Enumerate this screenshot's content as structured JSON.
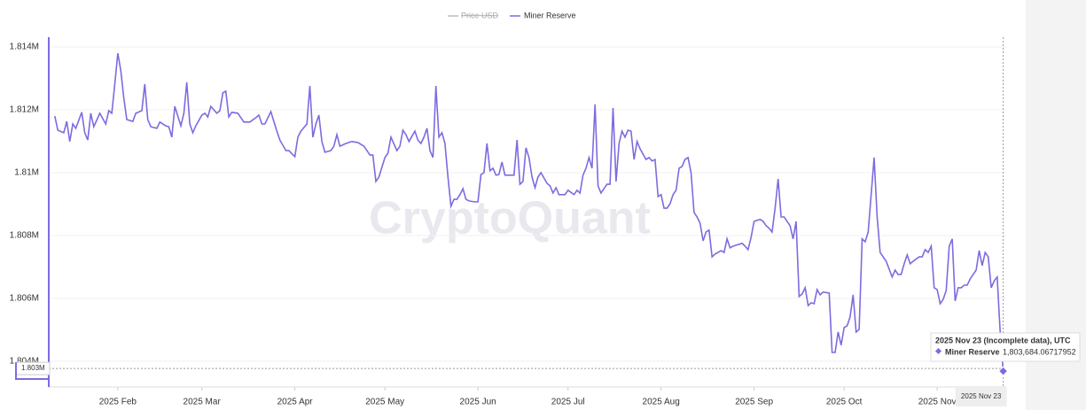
{
  "chart_data": {
    "type": "line",
    "watermark": "CryptoQuant",
    "hidden_series": [
      {
        "name": "Price USD",
        "color": "#bbbbbb"
      }
    ],
    "x": [
      "2025-01-11",
      "2025-01-12",
      "2025-01-14",
      "2025-01-15",
      "2025-01-16",
      "2025-01-17",
      "2025-01-18",
      "2025-01-20",
      "2025-01-21",
      "2025-01-22",
      "2025-01-23",
      "2025-01-24",
      "2025-01-26",
      "2025-01-28",
      "2025-01-29",
      "2025-01-30",
      "2025-01-31",
      "2025-02-01",
      "2025-02-02",
      "2025-02-03",
      "2025-02-04",
      "2025-02-06",
      "2025-02-07",
      "2025-02-09",
      "2025-02-10",
      "2025-02-11",
      "2025-02-12",
      "2025-02-14",
      "2025-02-15",
      "2025-02-17",
      "2025-02-18",
      "2025-02-19",
      "2025-02-20",
      "2025-02-22",
      "2025-02-23",
      "2025-02-24",
      "2025-02-25",
      "2025-02-26",
      "2025-02-27",
      "2025-03-01",
      "2025-03-02",
      "2025-03-03",
      "2025-03-04",
      "2025-03-06",
      "2025-03-07",
      "2025-03-08",
      "2025-03-09",
      "2025-03-10",
      "2025-03-11",
      "2025-03-13",
      "2025-03-15",
      "2025-03-17",
      "2025-03-19",
      "2025-03-20",
      "2025-03-21",
      "2025-03-22",
      "2025-03-24",
      "2025-03-26",
      "2025-03-27",
      "2025-03-29",
      "2025-03-30",
      "2025-04-01",
      "2025-04-02",
      "2025-04-03",
      "2025-04-05",
      "2025-04-06",
      "2025-04-07",
      "2025-04-08",
      "2025-04-09",
      "2025-04-10",
      "2025-04-11",
      "2025-04-13",
      "2025-04-14",
      "2025-04-15",
      "2025-04-16",
      "2025-04-18",
      "2025-04-20",
      "2025-04-22",
      "2025-04-24",
      "2025-04-26",
      "2025-04-27",
      "2025-04-28",
      "2025-04-29",
      "2025-05-01",
      "2025-05-02",
      "2025-05-03",
      "2025-05-05",
      "2025-05-06",
      "2025-05-07",
      "2025-05-08",
      "2025-05-09",
      "2025-05-11",
      "2025-05-12",
      "2025-05-13",
      "2025-05-14",
      "2025-05-15",
      "2025-05-16",
      "2025-05-17",
      "2025-05-18",
      "2025-05-19",
      "2025-05-20",
      "2025-05-21",
      "2025-05-22",
      "2025-05-23",
      "2025-05-24",
      "2025-05-25",
      "2025-05-26",
      "2025-05-27",
      "2025-05-28",
      "2025-05-29",
      "2025-05-31",
      "2025-06-01",
      "2025-06-02",
      "2025-06-03",
      "2025-06-04",
      "2025-06-05",
      "2025-06-06",
      "2025-06-07",
      "2025-06-08",
      "2025-06-09",
      "2025-06-10",
      "2025-06-11",
      "2025-06-13",
      "2025-06-14",
      "2025-06-15",
      "2025-06-16",
      "2025-06-17",
      "2025-06-18",
      "2025-06-19",
      "2025-06-20",
      "2025-06-21",
      "2025-06-22",
      "2025-06-24",
      "2025-06-25",
      "2025-06-26",
      "2025-06-27",
      "2025-06-28",
      "2025-06-30",
      "2025-07-01",
      "2025-07-03",
      "2025-07-04",
      "2025-07-05",
      "2025-07-06",
      "2025-07-07",
      "2025-07-08",
      "2025-07-09",
      "2025-07-10",
      "2025-07-11",
      "2025-07-12",
      "2025-07-14",
      "2025-07-15",
      "2025-07-16",
      "2025-07-17",
      "2025-07-18",
      "2025-07-19",
      "2025-07-20",
      "2025-07-21",
      "2025-07-22",
      "2025-07-23",
      "2025-07-24",
      "2025-07-25",
      "2025-07-27",
      "2025-07-28",
      "2025-07-29",
      "2025-07-30",
      "2025-07-31",
      "2025-08-01",
      "2025-08-02",
      "2025-08-03",
      "2025-08-04",
      "2025-08-05",
      "2025-08-06",
      "2025-08-07",
      "2025-08-08",
      "2025-08-09",
      "2025-08-10",
      "2025-08-11",
      "2025-08-12",
      "2025-08-13",
      "2025-08-14",
      "2025-08-15",
      "2025-08-16",
      "2025-08-17",
      "2025-08-18",
      "2025-08-19",
      "2025-08-21",
      "2025-08-22",
      "2025-08-23",
      "2025-08-24",
      "2025-08-25",
      "2025-08-26",
      "2025-08-28",
      "2025-08-29",
      "2025-08-30",
      "2025-08-31",
      "2025-09-01",
      "2025-09-03",
      "2025-09-04",
      "2025-09-05",
      "2025-09-06",
      "2025-09-07",
      "2025-09-08",
      "2025-09-09",
      "2025-09-10",
      "2025-09-11",
      "2025-09-13",
      "2025-09-14",
      "2025-09-15",
      "2025-09-16",
      "2025-09-17",
      "2025-09-18",
      "2025-09-19",
      "2025-09-20",
      "2025-09-21",
      "2025-09-22",
      "2025-09-23",
      "2025-09-24",
      "2025-09-26",
      "2025-09-27",
      "2025-09-28",
      "2025-09-29",
      "2025-09-30",
      "2025-10-01",
      "2025-10-02",
      "2025-10-03",
      "2025-10-04",
      "2025-10-05",
      "2025-10-06",
      "2025-10-07",
      "2025-10-08",
      "2025-10-09",
      "2025-10-11",
      "2025-10-12",
      "2025-10-13",
      "2025-10-14",
      "2025-10-15",
      "2025-10-17",
      "2025-10-18",
      "2025-10-19",
      "2025-10-20",
      "2025-10-21",
      "2025-10-22",
      "2025-10-23",
      "2025-10-24",
      "2025-10-26",
      "2025-10-27",
      "2025-10-28",
      "2025-10-29",
      "2025-10-30",
      "2025-10-31",
      "2025-11-01",
      "2025-11-02",
      "2025-11-03",
      "2025-11-04",
      "2025-11-05",
      "2025-11-06",
      "2025-11-07",
      "2025-11-08",
      "2025-11-09",
      "2025-11-10",
      "2025-11-11",
      "2025-11-12",
      "2025-11-14",
      "2025-11-15",
      "2025-11-16",
      "2025-11-17",
      "2025-11-18",
      "2025-11-19",
      "2025-11-20",
      "2025-11-21",
      "2025-11-22",
      "2025-11-23"
    ],
    "series": [
      {
        "name": "Miner Reserve",
        "color": "#7d6be0",
        "values": [
          1811800,
          1811350,
          1811270,
          1811630,
          1810990,
          1811550,
          1811410,
          1811920,
          1811270,
          1811040,
          1811890,
          1811460,
          1811890,
          1811550,
          1811970,
          1811890,
          1812820,
          1813800,
          1813240,
          1812390,
          1811690,
          1811630,
          1811890,
          1811970,
          1812820,
          1811690,
          1811460,
          1811410,
          1811610,
          1811490,
          1811460,
          1811130,
          1812110,
          1811490,
          1811890,
          1812870,
          1811550,
          1811270,
          1811490,
          1811830,
          1811890,
          1811770,
          1812110,
          1811890,
          1811970,
          1812540,
          1812590,
          1811770,
          1811920,
          1811890,
          1811610,
          1811610,
          1811750,
          1811830,
          1811550,
          1811550,
          1811940,
          1811320,
          1811040,
          1810700,
          1810700,
          1810510,
          1811130,
          1811320,
          1811550,
          1812760,
          1811130,
          1811550,
          1811830,
          1810990,
          1810650,
          1810700,
          1810840,
          1811210,
          1810840,
          1810930,
          1810990,
          1810960,
          1810840,
          1810560,
          1810560,
          1809720,
          1809860,
          1810480,
          1810620,
          1811130,
          1810700,
          1810840,
          1811350,
          1811210,
          1810990,
          1811320,
          1811040,
          1810930,
          1811130,
          1811410,
          1810700,
          1810480,
          1812760,
          1811130,
          1811270,
          1810930,
          1809860,
          1808930,
          1809150,
          1809150,
          1809300,
          1809490,
          1809150,
          1809100,
          1809070,
          1809070,
          1809940,
          1810000,
          1810930,
          1810060,
          1810140,
          1809920,
          1809940,
          1810340,
          1809920,
          1809920,
          1809920,
          1811040,
          1809630,
          1809720,
          1810790,
          1810480,
          1809860,
          1809520,
          1809860,
          1810000,
          1809660,
          1809580,
          1809350,
          1809520,
          1809300,
          1809300,
          1809440,
          1809300,
          1809440,
          1809350,
          1809920,
          1810140,
          1810480,
          1810140,
          1812170,
          1809580,
          1809350,
          1809630,
          1809630,
          1812060,
          1809720,
          1810930,
          1811320,
          1811130,
          1811350,
          1811320,
          1810420,
          1810990,
          1810760,
          1810420,
          1810480,
          1810370,
          1810420,
          1809240,
          1809300,
          1808870,
          1808870,
          1809010,
          1809300,
          1809440,
          1810140,
          1810200,
          1810420,
          1810480,
          1810000,
          1808730,
          1808590,
          1808390,
          1807830,
          1808110,
          1808170,
          1807320,
          1807410,
          1807520,
          1807460,
          1807890,
          1807610,
          1807660,
          1807690,
          1807750,
          1807660,
          1807550,
          1807940,
          1808450,
          1808510,
          1808450,
          1808310,
          1808230,
          1808110,
          1808870,
          1809800,
          1808590,
          1808590,
          1808310,
          1807890,
          1808450,
          1806060,
          1806140,
          1806340,
          1805770,
          1805860,
          1805830,
          1806280,
          1806110,
          1806200,
          1806170,
          1804280,
          1804280,
          1804930,
          1804510,
          1805070,
          1805130,
          1805410,
          1806110,
          1804930,
          1805010,
          1807890,
          1807800,
          1808110,
          1810480,
          1808590,
          1807460,
          1807320,
          1807180,
          1806680,
          1806900,
          1806760,
          1806760,
          1807100,
          1807380,
          1807100,
          1807180,
          1807320,
          1807320,
          1807550,
          1807460,
          1807660,
          1806340,
          1806280,
          1805830,
          1805970,
          1806250,
          1807660,
          1807890,
          1805920,
          1806340,
          1806340,
          1806420,
          1806420,
          1806620,
          1806900,
          1807520,
          1807040,
          1807460,
          1807320,
          1806340,
          1806560,
          1806680,
          1804930,
          1803684.06717952
        ]
      }
    ],
    "xlim": [
      "2025-01-09",
      "2025-11-24"
    ],
    "xticks": [
      {
        "value": "2025-02-01",
        "label": "2025 Feb"
      },
      {
        "value": "2025-03-01",
        "label": "2025 Mar"
      },
      {
        "value": "2025-04-01",
        "label": "2025 Apr"
      },
      {
        "value": "2025-05-01",
        "label": "2025 May"
      },
      {
        "value": "2025-06-01",
        "label": "2025 Jun"
      },
      {
        "value": "2025-07-01",
        "label": "2025 Jul"
      },
      {
        "value": "2025-08-01",
        "label": "2025 Aug"
      },
      {
        "value": "2025-09-01",
        "label": "2025 Sep"
      },
      {
        "value": "2025-10-01",
        "label": "2025 Oct"
      },
      {
        "value": "2025-11-01",
        "label": "2025 Nov"
      }
    ],
    "ylim": [
      1803180,
      1814310
    ],
    "yticks": [
      {
        "value": 1804000,
        "label": "1.804M"
      },
      {
        "value": 1806000,
        "label": "1.806M"
      },
      {
        "value": 1808000,
        "label": "1.808M"
      },
      {
        "value": 1810000,
        "label": "1.81M"
      },
      {
        "value": 1812000,
        "label": "1.812M"
      },
      {
        "value": 1814000,
        "label": "1.814M"
      }
    ],
    "grid": true,
    "legend": "top",
    "crosshair": {
      "y_label": "1.803M",
      "x_label": "2025 Nov 23"
    },
    "tooltip": {
      "title": "2025 Nov 23 (Incomplete data), UTC",
      "value_label": "1,803,684.06717952"
    }
  }
}
